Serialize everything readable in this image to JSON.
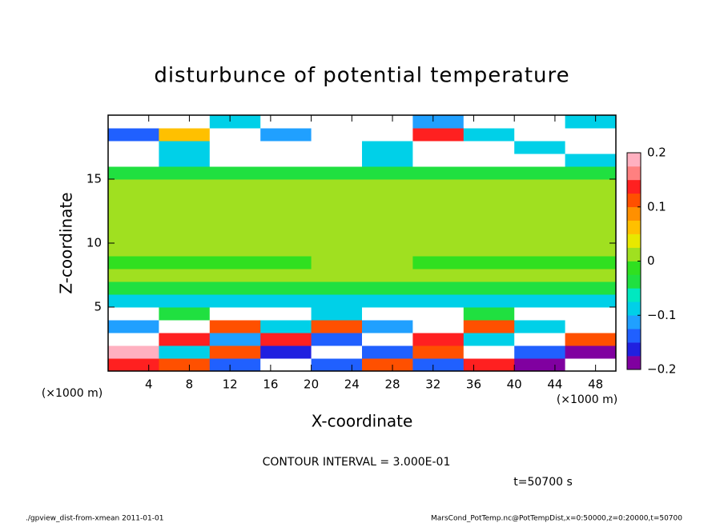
{
  "chart_data": {
    "type": "heatmap",
    "title": "disturbunce of potential temperature",
    "xlabel": "X-coordinate",
    "ylabel": "Z-coordinate",
    "unit_labels": [
      "(×1000 m)",
      "(×1000 m)"
    ],
    "contour_note": "CONTOUR INTERVAL = 3.000E-01",
    "time_label": "t=50700 s",
    "footer_left": "./gpview_dist-from-xmean  2011-01-01",
    "footer_right": "MarsCond_PotTemp.nc@PotTempDist,x=0:50000,z=0:20000,t=50700",
    "xlim": [
      0,
      50
    ],
    "xticks": [
      4,
      8,
      12,
      16,
      20,
      24,
      28,
      32,
      36,
      40,
      44,
      48
    ],
    "ylim": [
      0,
      20
    ],
    "yticks": [
      5,
      10,
      15
    ],
    "x": [
      2.5,
      7.5,
      12.5,
      17.5,
      22.5,
      27.5,
      32.5,
      37.5,
      42.5,
      47.5
    ],
    "y": [
      0.5,
      1.5,
      2.5,
      3.5,
      4.5,
      5.5,
      6.5,
      7.5,
      8.5,
      9.5,
      10.5,
      11.5,
      12.5,
      13.5,
      14.5,
      15.5,
      16.5,
      17.5,
      18.5,
      19.5
    ],
    "z": [
      [
        0.15,
        0.1,
        -0.15,
        0.3,
        -0.15,
        0.1,
        -0.15,
        0.15,
        -0.18,
        0.3
      ],
      [
        0.18,
        -0.1,
        0.12,
        -0.17,
        0.3,
        -0.15,
        0.1,
        0.3,
        -0.15,
        -0.18
      ],
      [
        0.3,
        0.15,
        -0.12,
        0.15,
        -0.14,
        0.3,
        0.15,
        -0.1,
        0.3,
        0.12
      ],
      [
        -0.12,
        0.3,
        0.1,
        -0.1,
        0.12,
        -0.12,
        0.3,
        0.1,
        -0.1,
        0.3
      ],
      [
        0.3,
        -0.05,
        0.3,
        0.3,
        -0.08,
        0.3,
        0.3,
        -0.05,
        0.3,
        0.3
      ],
      [
        -0.08,
        -0.08,
        -0.08,
        -0.08,
        -0.08,
        -0.08,
        -0.08,
        -0.08,
        -0.08,
        -0.08
      ],
      [
        -0.04,
        -0.04,
        -0.04,
        -0.04,
        -0.04,
        -0.04,
        -0.04,
        -0.04,
        -0.04,
        -0.04
      ],
      [
        0,
        0,
        0,
        0,
        0,
        0,
        0,
        0,
        0,
        0
      ],
      [
        -0.02,
        -0.02,
        -0.02,
        -0.02,
        0,
        0,
        -0.02,
        -0.02,
        -0.02,
        -0.02
      ],
      [
        0.01,
        0.01,
        0.01,
        0.01,
        0.01,
        0.01,
        0.01,
        0.01,
        0.01,
        0.01
      ],
      [
        0.01,
        0.01,
        0.01,
        0.01,
        0.01,
        0.01,
        0.01,
        0.01,
        0.01,
        0.01
      ],
      [
        0,
        0,
        0,
        0.01,
        0.01,
        0.01,
        0,
        0,
        0,
        0
      ],
      [
        0,
        0,
        0,
        0.01,
        0.01,
        0.01,
        0,
        0,
        0,
        0
      ],
      [
        0,
        0,
        0,
        0.01,
        0.01,
        0.01,
        0,
        0,
        0,
        0
      ],
      [
        0,
        0,
        0,
        0,
        0,
        0,
        0,
        0,
        0,
        0
      ],
      [
        -0.03,
        -0.03,
        -0.03,
        -0.03,
        -0.03,
        -0.03,
        -0.03,
        -0.03,
        -0.03,
        -0.03
      ],
      [
        0.3,
        -0.1,
        0.3,
        0.3,
        0.3,
        -0.08,
        0.3,
        0.3,
        0.3,
        -0.1
      ],
      [
        0.3,
        -0.1,
        0.3,
        0.3,
        0.3,
        -0.08,
        0.3,
        0.3,
        -0.1,
        0.3
      ],
      [
        -0.15,
        0.05,
        0.3,
        -0.12,
        0.3,
        0.3,
        0.15,
        -0.1,
        0.3,
        0.3
      ],
      [
        0.3,
        0.3,
        -0.1,
        0.3,
        0.3,
        0.3,
        -0.12,
        0.3,
        0.3,
        -0.1
      ]
    ],
    "clim": [
      -0.2,
      0.2
    ],
    "colors": [
      "#8000a0",
      "#2020e0",
      "#2060ff",
      "#20a0ff",
      "#00d0e8",
      "#00e8c0",
      "#20e040",
      "#30e020",
      "#a0e020",
      "#e8e800",
      "#ffc000",
      "#ff9000",
      "#ff5000",
      "#ff2020",
      "#ff8080",
      "#ffb0c0"
    ],
    "out_of_range_color": "#ffffff",
    "cticks": [
      {
        "value": -0.2,
        "label": "−0.2"
      },
      {
        "value": -0.1,
        "label": "−0.1"
      },
      0,
      0.1,
      0.2
    ]
  }
}
